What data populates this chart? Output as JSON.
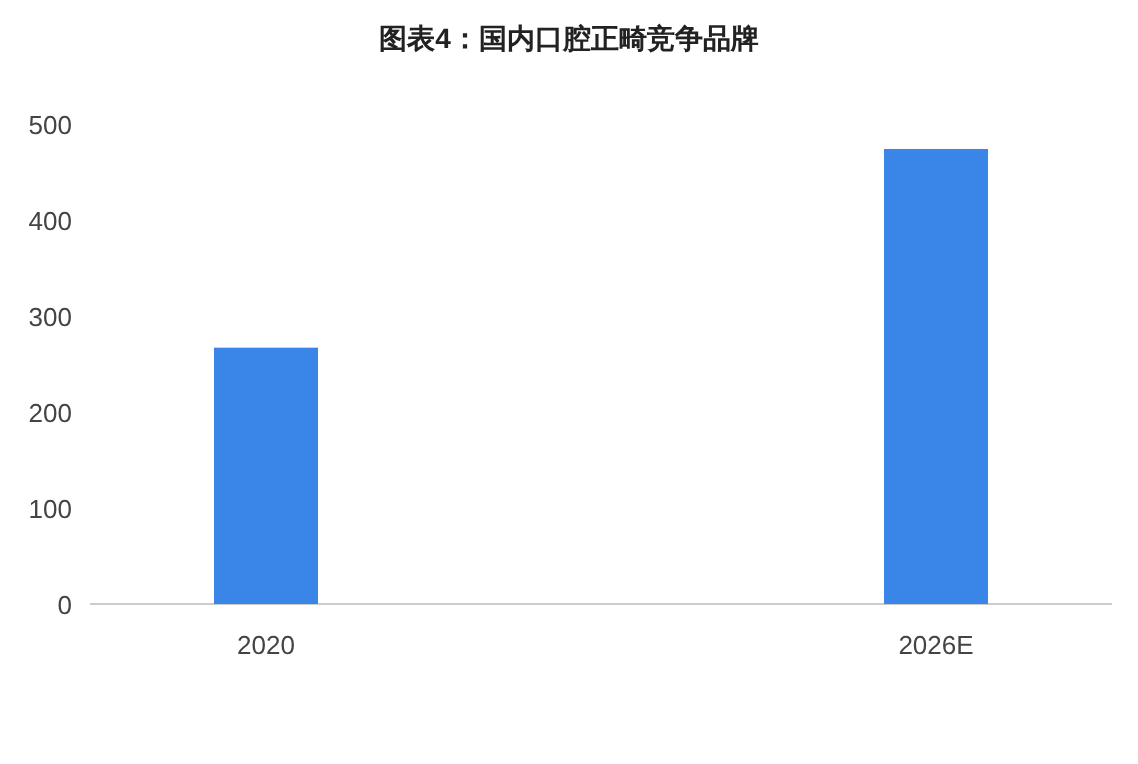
{
  "chart_data": {
    "type": "bar",
    "title": "图表4：国内口腔正畸竞争品牌",
    "categories": [
      "2020",
      "2026E"
    ],
    "values": [
      267,
      474
    ],
    "color": "#3a86e8",
    "ylim": [
      0,
      500
    ],
    "yticks": [
      0,
      100,
      200,
      300,
      400,
      500
    ],
    "grid": false
  }
}
